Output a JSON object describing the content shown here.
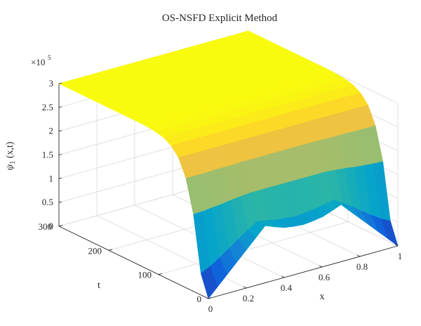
{
  "chart_data": {
    "type": "surface",
    "title": "OS-NSFD Explicit Method",
    "xlabel": "x",
    "ylabel": "t",
    "zlabel": "ψ1 (x,t)",
    "zlabel_main": "ψ",
    "zlabel_sub": "1",
    "zlabel_rest": " (x,t)",
    "z_exponent_label": "×10",
    "z_exponent_power": "5",
    "xlim": [
      0,
      1
    ],
    "ylim": [
      0,
      300
    ],
    "zlim": [
      0,
      3
    ],
    "x_ticks": [
      0,
      0.2,
      0.4,
      0.6,
      0.8,
      1
    ],
    "x_tick_labels": [
      "0",
      "0.2",
      "0.4",
      "0.6",
      "0.8",
      "1"
    ],
    "y_ticks": [
      0,
      100,
      200,
      300
    ],
    "y_tick_labels": [
      "0",
      "100",
      "200",
      "300"
    ],
    "z_ticks": [
      0,
      0.5,
      1,
      1.5,
      2,
      2.5,
      3
    ],
    "z_tick_labels": [
      "0",
      "0.5",
      "1",
      "1.5",
      "2",
      "2.5",
      "3"
    ],
    "grid": true,
    "colormap": "parula",
    "surface": {
      "x": [
        0,
        0.05,
        0.1,
        0.15,
        0.2,
        0.25,
        0.3,
        0.35,
        0.4,
        0.45,
        0.5,
        0.55,
        0.6,
        0.65,
        0.7,
        0.75,
        0.8,
        0.85,
        0.9,
        0.95,
        1
      ],
      "t": [
        0,
        15,
        30,
        45,
        60,
        75,
        90,
        105,
        120,
        135,
        150,
        165,
        180,
        195,
        210,
        225,
        240,
        255,
        270,
        285,
        300
      ],
      "z": [
        [
          0,
          0.2,
          0.4,
          0.6,
          0.8,
          1,
          1.2,
          1.12,
          1.05,
          1.02,
          1,
          1.02,
          1.05,
          1.12,
          1.2,
          1,
          0.8,
          0.6,
          0.4,
          0.2,
          0
        ],
        [
          0.45,
          0.55,
          0.68,
          0.82,
          0.96,
          1.1,
          1.22,
          1.18,
          1.14,
          1.12,
          1.1,
          1.12,
          1.14,
          1.18,
          1.22,
          1.1,
          0.96,
          0.82,
          0.68,
          0.55,
          0.45
        ],
        [
          1.62,
          1.63,
          1.65,
          1.67,
          1.7,
          1.72,
          1.74,
          1.74,
          1.74,
          1.74,
          1.74,
          1.74,
          1.74,
          1.74,
          1.74,
          1.72,
          1.7,
          1.67,
          1.65,
          1.63,
          1.62
        ],
        [
          2.3,
          2.3,
          2.3,
          2.31,
          2.31,
          2.31,
          2.32,
          2.32,
          2.32,
          2.32,
          2.32,
          2.32,
          2.32,
          2.32,
          2.32,
          2.31,
          2.31,
          2.31,
          2.3,
          2.3,
          2.3
        ],
        [
          2.66,
          2.66,
          2.66,
          2.66,
          2.66,
          2.66,
          2.66,
          2.66,
          2.66,
          2.66,
          2.66,
          2.66,
          2.66,
          2.66,
          2.66,
          2.66,
          2.66,
          2.66,
          2.66,
          2.66,
          2.66
        ],
        [
          2.84,
          2.84,
          2.84,
          2.84,
          2.84,
          2.84,
          2.84,
          2.84,
          2.84,
          2.84,
          2.84,
          2.84,
          2.84,
          2.84,
          2.84,
          2.84,
          2.84,
          2.84,
          2.84,
          2.84,
          2.84
        ],
        [
          2.93,
          2.93,
          2.93,
          2.93,
          2.93,
          2.93,
          2.93,
          2.93,
          2.93,
          2.93,
          2.93,
          2.93,
          2.93,
          2.93,
          2.93,
          2.93,
          2.93,
          2.93,
          2.93,
          2.93,
          2.93
        ],
        [
          2.97,
          2.97,
          2.97,
          2.97,
          2.97,
          2.97,
          2.97,
          2.97,
          2.97,
          2.97,
          2.97,
          2.97,
          2.97,
          2.97,
          2.97,
          2.97,
          2.97,
          2.97,
          2.97,
          2.97,
          2.97
        ],
        [
          2.99,
          2.99,
          2.99,
          2.99,
          2.99,
          2.99,
          2.99,
          2.99,
          2.99,
          2.99,
          2.99,
          2.99,
          2.99,
          2.99,
          2.99,
          2.99,
          2.99,
          2.99,
          2.99,
          2.99,
          2.99
        ],
        [
          3,
          3,
          3,
          3,
          3,
          3,
          3,
          3,
          3,
          3,
          3,
          3,
          3,
          3,
          3,
          3,
          3,
          3,
          3,
          3,
          3
        ],
        [
          3,
          3,
          3,
          3,
          3,
          3,
          3,
          3,
          3,
          3,
          3,
          3,
          3,
          3,
          3,
          3,
          3,
          3,
          3,
          3,
          3
        ],
        [
          3,
          3,
          3,
          3,
          3,
          3,
          3,
          3,
          3,
          3,
          3,
          3,
          3,
          3,
          3,
          3,
          3,
          3,
          3,
          3,
          3
        ],
        [
          3,
          3,
          3,
          3,
          3,
          3,
          3,
          3,
          3,
          3,
          3,
          3,
          3,
          3,
          3,
          3,
          3,
          3,
          3,
          3,
          3
        ],
        [
          3,
          3,
          3,
          3,
          3,
          3,
          3,
          3,
          3,
          3,
          3,
          3,
          3,
          3,
          3,
          3,
          3,
          3,
          3,
          3,
          3
        ],
        [
          3,
          3,
          3,
          3,
          3,
          3,
          3,
          3,
          3,
          3,
          3,
          3,
          3,
          3,
          3,
          3,
          3,
          3,
          3,
          3,
          3
        ],
        [
          3,
          3,
          3,
          3,
          3,
          3,
          3,
          3,
          3,
          3,
          3,
          3,
          3,
          3,
          3,
          3,
          3,
          3,
          3,
          3,
          3
        ],
        [
          3,
          3,
          3,
          3,
          3,
          3,
          3,
          3,
          3,
          3,
          3,
          3,
          3,
          3,
          3,
          3,
          3,
          3,
          3,
          3,
          3
        ],
        [
          3,
          3,
          3,
          3,
          3,
          3,
          3,
          3,
          3,
          3,
          3,
          3,
          3,
          3,
          3,
          3,
          3,
          3,
          3,
          3,
          3
        ],
        [
          3,
          3,
          3,
          3,
          3,
          3,
          3,
          3,
          3,
          3,
          3,
          3,
          3,
          3,
          3,
          3,
          3,
          3,
          3,
          3,
          3
        ],
        [
          3,
          3,
          3,
          3,
          3,
          3,
          3,
          3,
          3,
          3,
          3,
          3,
          3,
          3,
          3,
          3,
          3,
          3,
          3,
          3,
          3
        ],
        [
          3,
          3,
          3,
          3,
          3,
          3,
          3,
          3,
          3,
          3,
          3,
          3,
          3,
          3,
          3,
          3,
          3,
          3,
          3,
          3,
          3
        ]
      ]
    }
  },
  "colors": {
    "colormap_stops": [
      "#352a87",
      "#0f5cdd",
      "#1481d6",
      "#06a4ca",
      "#2eb7a4",
      "#87bf77",
      "#d1bb59",
      "#fec832",
      "#f9fb0e"
    ],
    "grid": "#d9d9d9",
    "axis": "#262626"
  }
}
